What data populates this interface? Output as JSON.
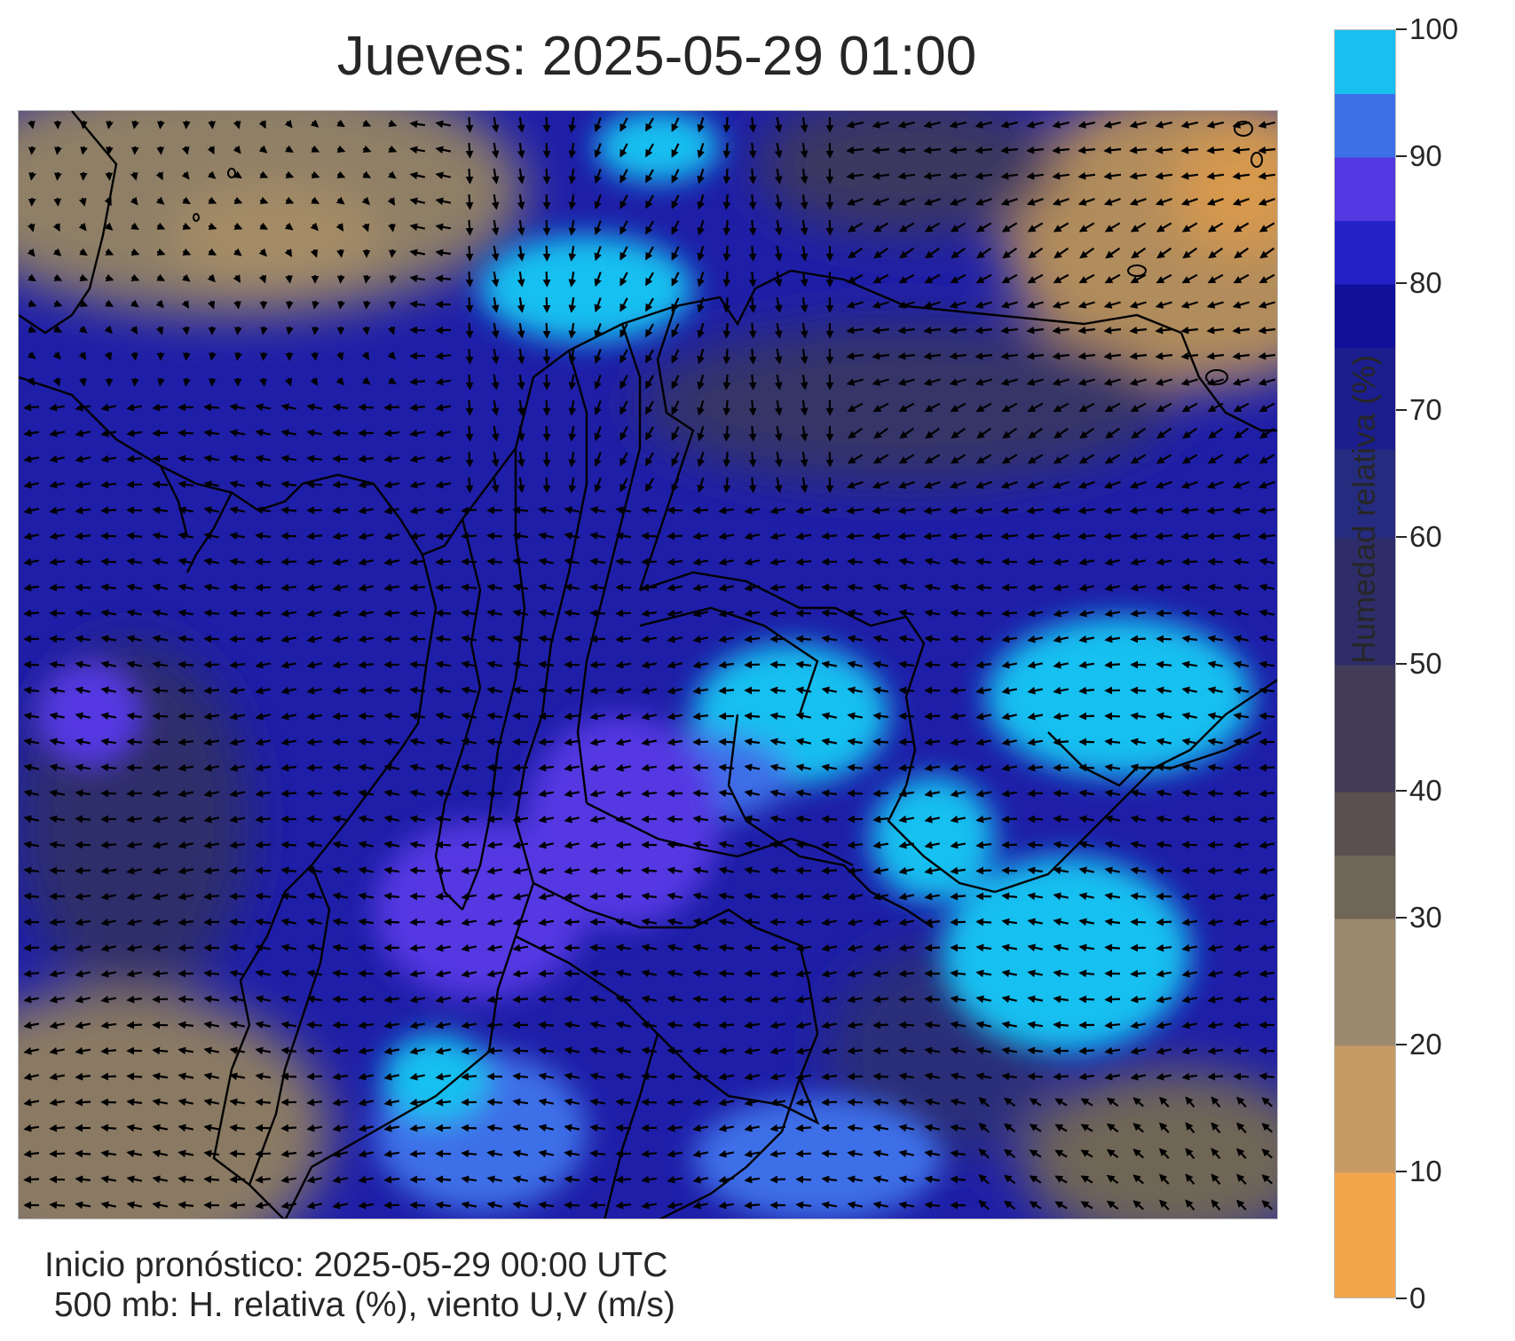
{
  "title": "Jueves: 2025-05-29 01:00",
  "footer": {
    "line1": "Inicio pronóstico: 2025-05-29 00:00 UTC",
    "line2": " 500 mb: H. relativa (%), viento U,V (m/s)"
  },
  "colorbar": {
    "label": "Humedad relativa (%)",
    "min": 0,
    "max": 100,
    "ticks": [
      "0",
      "10",
      "20",
      "30",
      "40",
      "50",
      "60",
      "70",
      "80",
      "90",
      "100"
    ],
    "stops": [
      {
        "v": 0,
        "color": "#f3a64a"
      },
      {
        "v": 10,
        "color": "#c79a64"
      },
      {
        "v": 20,
        "color": "#9c8a6e"
      },
      {
        "v": 30,
        "color": "#6f6657"
      },
      {
        "v": 35,
        "color": "#5a5050"
      },
      {
        "v": 40,
        "color": "#423c58"
      },
      {
        "v": 50,
        "color": "#2e2d6a"
      },
      {
        "v": 60,
        "color": "#252b7e"
      },
      {
        "v": 67,
        "color": "#1b1e8c"
      },
      {
        "v": 75,
        "color": "#10109a"
      },
      {
        "v": 80,
        "color": "#2222c8"
      },
      {
        "v": 85,
        "color": "#5438e2"
      },
      {
        "v": 90,
        "color": "#3d6fe8"
      },
      {
        "v": 95,
        "color": "#18c0f0"
      },
      {
        "v": 100,
        "color": "#00ffff"
      }
    ]
  },
  "map": {
    "field": "humedad relativa 500 mb",
    "wind_vectors": "viento U,V",
    "base_color": "#1e1ea8"
  }
}
